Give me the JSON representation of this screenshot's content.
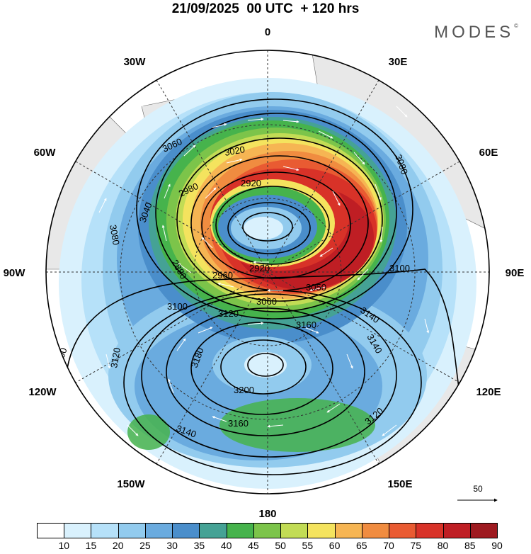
{
  "header": {
    "title": "21/09/2025  00 UTC  + 120 hrs",
    "brand": "MODES",
    "brand_mark": "©"
  },
  "map": {
    "projection": "polar-stereographic-north",
    "longitude_labels": [
      "0",
      "30E",
      "60E",
      "90E",
      "120E",
      "150E",
      "180",
      "150W",
      "120W",
      "90W",
      "60W",
      "30W"
    ],
    "contour_labels": [
      "3060",
      "3020",
      "3080",
      "2980",
      "2920",
      "3040",
      "3080",
      "2880",
      "2960",
      "2920",
      "3050",
      "3060",
      "3100",
      "3100",
      "3120",
      "3140",
      "3160",
      "3140",
      "3120",
      "3180",
      "3200",
      "3100",
      "3160",
      "3140",
      "3120"
    ],
    "reference_vector": "50",
    "colors": {
      "land": "#e8e8e8",
      "ocean": "#ffffff"
    }
  },
  "legend": {
    "ticks": [
      "10",
      "15",
      "20",
      "25",
      "30",
      "35",
      "40",
      "45",
      "50",
      "55",
      "60",
      "65",
      "70",
      "75",
      "80",
      "85",
      "90"
    ],
    "colors": [
      "#ffffff",
      "#d9f1fd",
      "#b6e1f9",
      "#92cbee",
      "#6aabdf",
      "#4a8ecb",
      "#45a295",
      "#46b34c",
      "#7cc44a",
      "#c2dc55",
      "#f4e35e",
      "#f6b553",
      "#f08c40",
      "#e95b32",
      "#d83228",
      "#bf1e24",
      "#9e1a20"
    ]
  }
}
